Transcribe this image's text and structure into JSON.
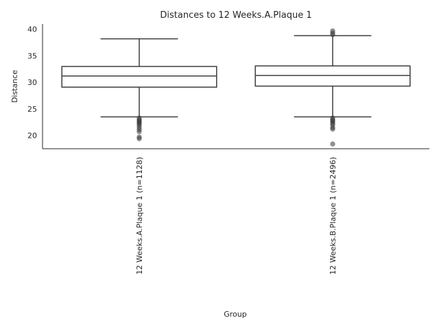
{
  "chart_data": {
    "type": "box",
    "title": "Distances to 12 Weeks.A.Plaque 1",
    "xlabel": "Group",
    "ylabel": "Distance",
    "ylim": [
      17.5,
      41.0
    ],
    "yticks": [
      20,
      25,
      30,
      35,
      40
    ],
    "grid": false,
    "categories": [
      "12 Weeks.A.Plaque 1 (n=1128)",
      "12 Weeks.B.Plaque 1 (n=2496)"
    ],
    "boxes": [
      {
        "whisker_low": 23.5,
        "q1": 29.1,
        "median": 31.2,
        "q3": 33.0,
        "whisker_high": 38.2,
        "outliers": [
          23.3,
          23.0,
          22.8,
          22.6,
          22.4,
          22.2,
          21.9,
          21.5,
          21.1,
          20.7,
          19.7,
          19.4
        ]
      },
      {
        "whisker_low": 23.5,
        "q1": 29.3,
        "median": 31.3,
        "q3": 33.1,
        "whisker_high": 38.8,
        "outliers": [
          39.0,
          39.3,
          39.7,
          23.3,
          23.0,
          22.8,
          22.6,
          22.3,
          22.0,
          21.5,
          21.2,
          18.4
        ]
      }
    ]
  }
}
